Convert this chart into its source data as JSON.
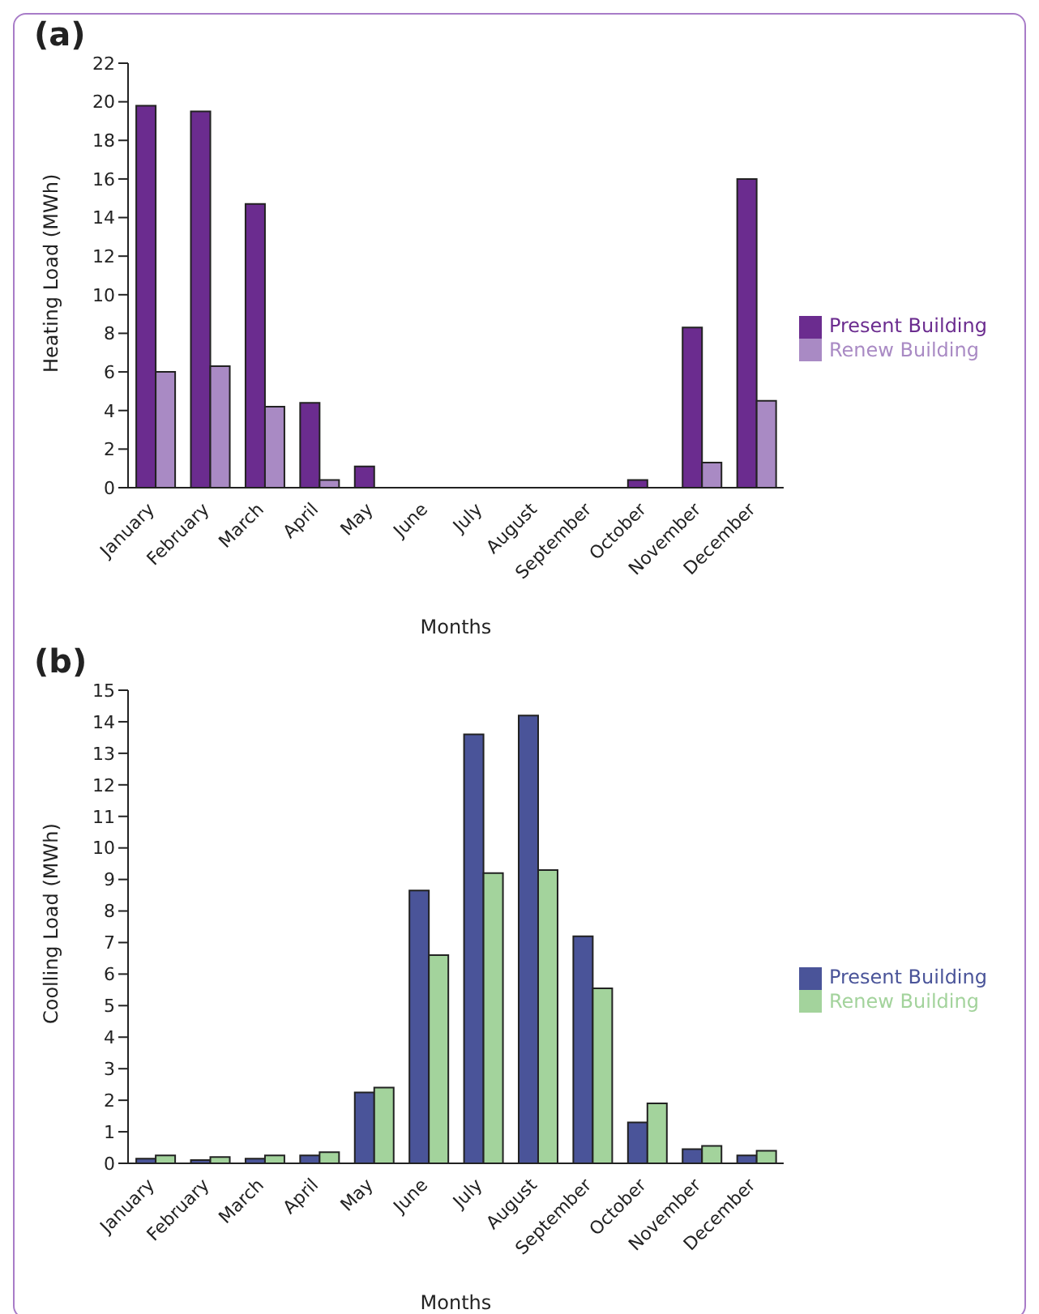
{
  "chart_data": [
    {
      "type": "bar",
      "title": "(a)",
      "xlabel": "Months",
      "ylabel": "Heating Load (MWh)",
      "categories": [
        "January",
        "February",
        "March",
        "April",
        "May",
        "June",
        "July",
        "August",
        "September",
        "October",
        "November",
        "December"
      ],
      "series": [
        {
          "name": "Present Building",
          "color": "#6b2c8f",
          "values": [
            19.8,
            19.5,
            14.7,
            4.4,
            1.1,
            0,
            0,
            0,
            0,
            0.4,
            8.3,
            16.0
          ]
        },
        {
          "name": "Renew Building",
          "color": "#a98ac4",
          "values": [
            6.0,
            6.3,
            4.2,
            0.4,
            0,
            0,
            0,
            0,
            0,
            0,
            1.3,
            4.5
          ]
        }
      ],
      "ylim": [
        0,
        22
      ],
      "yticks": [
        0,
        2,
        4,
        6,
        8,
        10,
        12,
        14,
        16,
        18,
        20,
        22
      ],
      "legend": "right"
    },
    {
      "type": "bar",
      "title": "(b)",
      "xlabel": "Months",
      "ylabel": "Coolling Load (MWh)",
      "categories": [
        "January",
        "February",
        "March",
        "April",
        "May",
        "June",
        "July",
        "August",
        "September",
        "October",
        "November",
        "December"
      ],
      "series": [
        {
          "name": "Present Building",
          "color": "#4a5499",
          "values": [
            0.15,
            0.1,
            0.15,
            0.25,
            2.25,
            8.65,
            13.6,
            14.2,
            7.2,
            1.3,
            0.45,
            0.25
          ]
        },
        {
          "name": "Renew Building",
          "color": "#a3d39c",
          "values": [
            0.25,
            0.2,
            0.25,
            0.35,
            2.4,
            6.6,
            9.2,
            9.3,
            5.55,
            1.9,
            0.55,
            0.4
          ]
        }
      ],
      "ylim": [
        0,
        15
      ],
      "yticks": [
        0,
        1,
        2,
        3,
        4,
        5,
        6,
        7,
        8,
        9,
        10,
        11,
        12,
        13,
        14,
        15
      ],
      "legend": "right"
    }
  ]
}
